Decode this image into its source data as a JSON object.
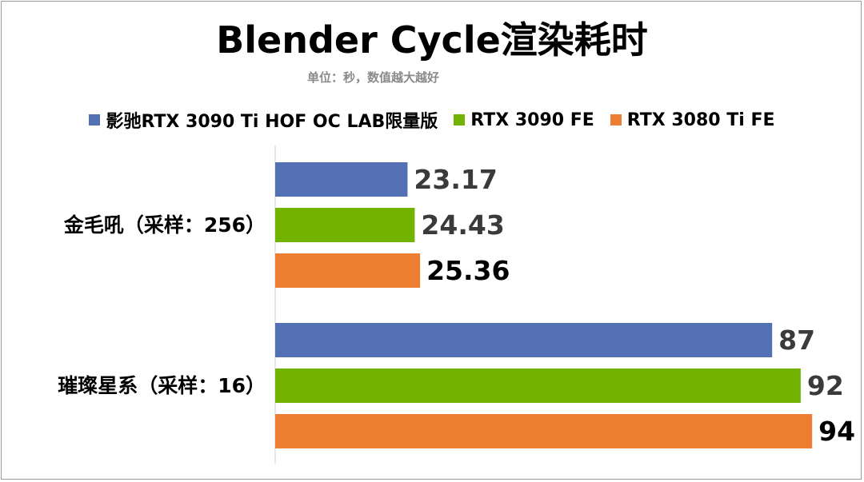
{
  "title": "Blender Cycle渲染耗时",
  "subtitle": "单位：秒，数值越大越好",
  "chart_data": {
    "type": "bar",
    "orientation": "horizontal",
    "title": "Blender Cycle渲染耗时",
    "subtitle": "单位：秒，数值越大越好",
    "categories": [
      "金毛吼（采样：256）",
      "璀璨星系（采样：16）"
    ],
    "series": [
      {
        "name": "影驰RTX 3090 Ti HOF OC LAB限量版",
        "color": "#5470b5",
        "values": [
          23.17,
          87
        ]
      },
      {
        "name": "RTX 3090 FE",
        "color": "#72b300",
        "values": [
          24.43,
          92
        ]
      },
      {
        "name": "RTX 3080 Ti FE",
        "color": "#ed7d31",
        "values": [
          25.36,
          94
        ]
      }
    ],
    "value_labels": [
      [
        "23.17",
        "87"
      ],
      [
        "24.43",
        "92"
      ],
      [
        "25.36",
        "94"
      ]
    ],
    "xlim": [
      0,
      100
    ],
    "grid": false,
    "legend_position": "top"
  }
}
